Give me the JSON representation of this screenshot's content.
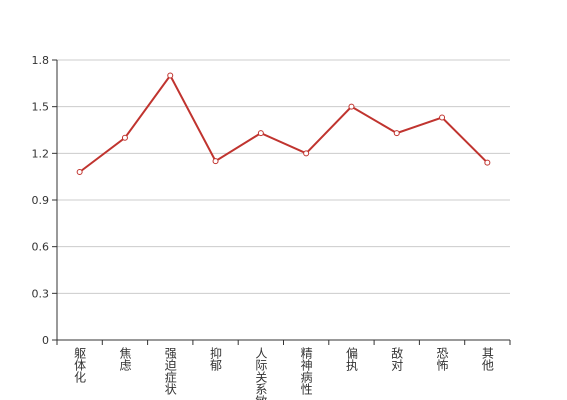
{
  "chart_data": {
    "type": "line",
    "categories": [
      "躯体化",
      "焦虑",
      "强迫症状",
      "抑郁",
      "人际关系敏感",
      "精神病性",
      "偏执",
      "敌对",
      "恐怖",
      "其他"
    ],
    "values": [
      1.08,
      1.3,
      1.7,
      1.15,
      1.33,
      1.2,
      1.5,
      1.33,
      1.43,
      1.14
    ],
    "color": "#c0342f",
    "ylim": [
      0,
      1.8
    ],
    "yticks": [
      0,
      0.3,
      0.6,
      0.9,
      1.2,
      1.5,
      1.8
    ],
    "grid": true
  }
}
